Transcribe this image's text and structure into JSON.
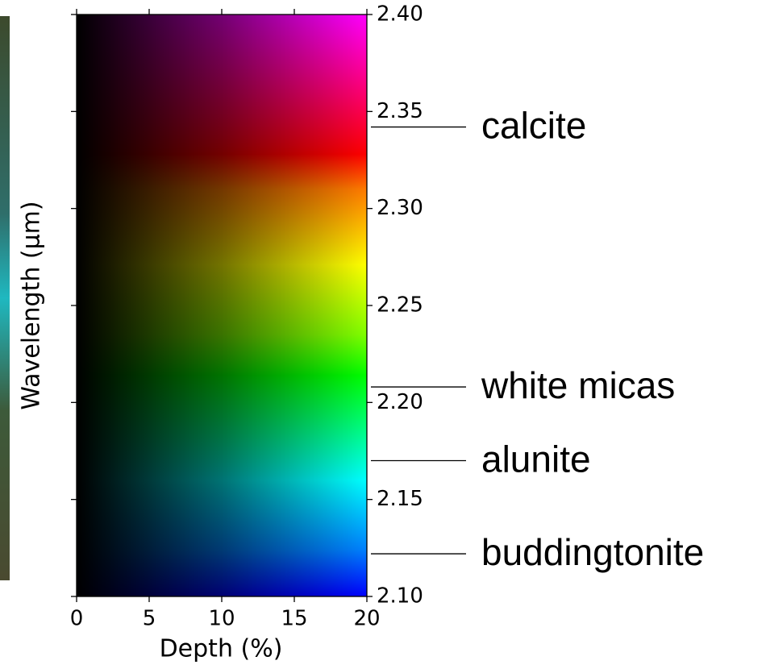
{
  "chart_data": {
    "type": "colormap",
    "xlabel": "Depth (%)",
    "ylabel": "Wavelength (μm)",
    "xlim": [
      0,
      20
    ],
    "xticks": [
      0,
      5,
      10,
      15,
      20
    ],
    "ylim": [
      2.1,
      2.4
    ],
    "yticks": [
      {
        "value": 2.1,
        "label": "2.10"
      },
      2.15,
      {
        "value": 2.2,
        "label": "2.20"
      },
      2.25,
      {
        "value": 2.3,
        "label": "2.30"
      },
      2.35,
      {
        "value": 2.4,
        "label": "2.40"
      }
    ],
    "annotations": [
      {
        "text": "calcite",
        "y": 2.342
      },
      {
        "text": "white micas",
        "y": 2.208
      },
      {
        "text": "alunite",
        "y": 2.17
      },
      {
        "text": "buddingtonite",
        "y": 2.122
      }
    ]
  }
}
